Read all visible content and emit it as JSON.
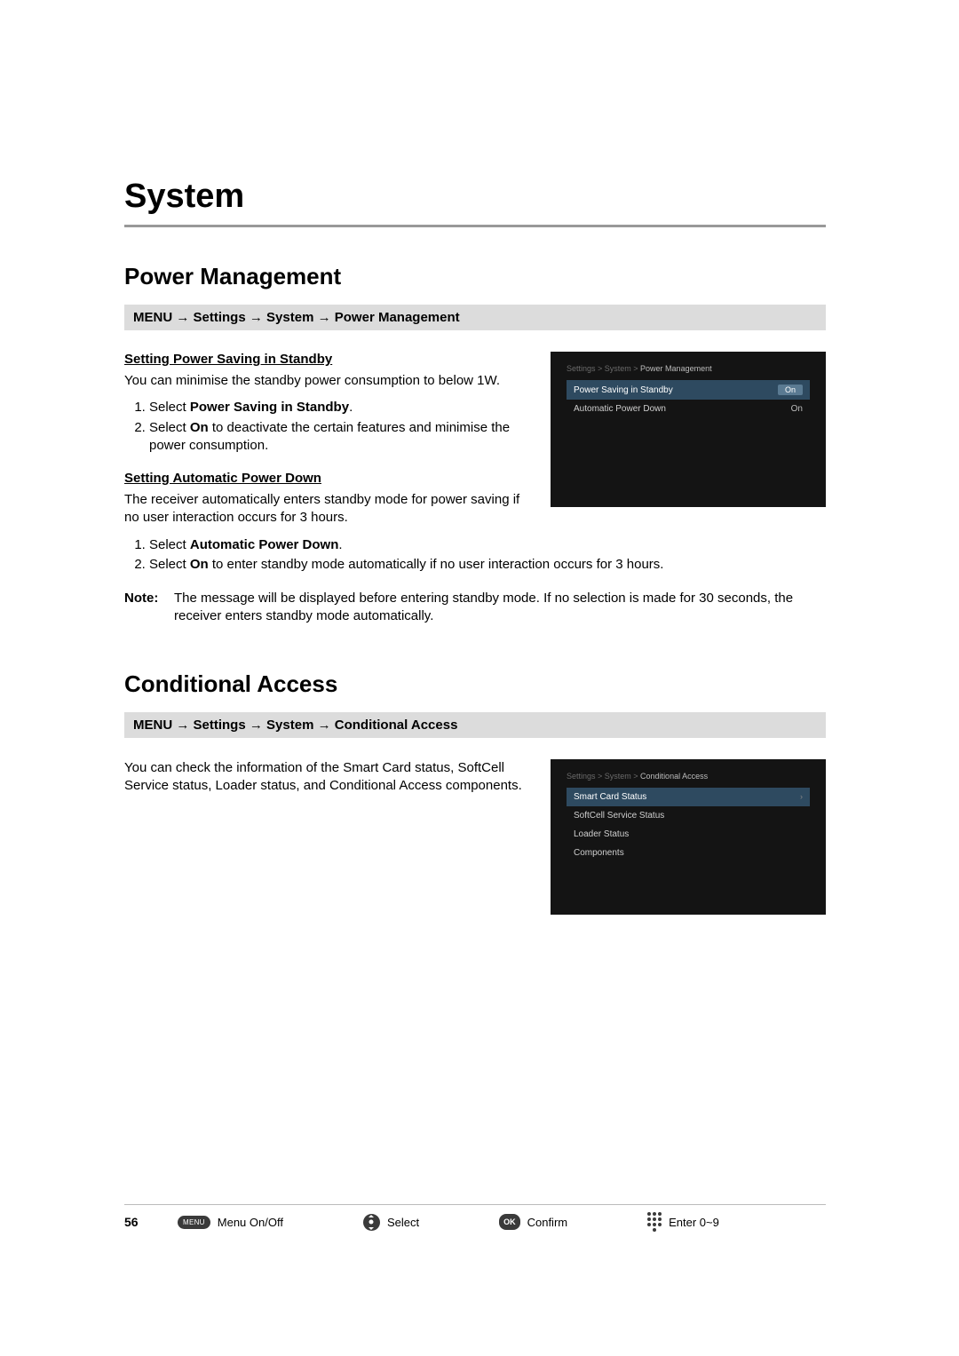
{
  "page": {
    "chapter_title": "System",
    "page_number": "56"
  },
  "power_mgmt": {
    "title": "Power Management",
    "path_prefix": "MENU",
    "path_parts": [
      "Settings",
      "System",
      "Power Management"
    ],
    "sub1_title": "Setting Power Saving in Standby",
    "sub1_intro": "You can minimise the standby power consumption to below 1W.",
    "sub1_step1_pre": "Select ",
    "sub1_step1_bold": "Power Saving in Standby",
    "sub1_step1_post": ".",
    "sub1_step2_pre": "Select ",
    "sub1_step2_bold": "On",
    "sub1_step2_post": " to deactivate the certain features and minimise the power consumption.",
    "sub2_title": "Setting Automatic Power Down",
    "sub2_intro": "The receiver automatically enters standby mode for power saving if no user interaction occurs for 3 hours.",
    "sub2_step1_pre": "Select ",
    "sub2_step1_bold": "Automatic Power Down",
    "sub2_step1_post": ".",
    "sub2_step2_pre": "Select ",
    "sub2_step2_bold": "On",
    "sub2_step2_post": " to enter standby mode automatically if no user interaction occurs for 3 hours.",
    "note_label": "Note:",
    "note_body": "The message will be displayed before entering standby mode. If no selection is made for 30 seconds, the receiver enters standby mode automatically.",
    "shot": {
      "crumb_pre": "Settings > System > ",
      "crumb_last": "Power Management",
      "row1_label": "Power Saving in Standby",
      "row1_value": "On",
      "row2_label": "Automatic Power Down",
      "row2_value": "On",
      "bg": "#141414",
      "sel_bg": "#2e4a60",
      "text_dim": "#6a6a6a",
      "text": "#cfcfcf"
    }
  },
  "cond_access": {
    "title": "Conditional Access",
    "path_prefix": "MENU",
    "path_parts": [
      "Settings",
      "System",
      "Conditional Access"
    ],
    "intro": "You can check the information of the Smart Card status, SoftCell Service status, Loader status, and Conditional Access components.",
    "shot": {
      "crumb_pre": "Settings > System > ",
      "crumb_last": "Conditional Access",
      "items": [
        "Smart Card Status",
        "SoftCell Service Status",
        "Loader Status",
        "Components"
      ]
    }
  },
  "footer": {
    "menu_text": "MENU",
    "menu_label": "Menu On/Off",
    "select_label": "Select",
    "ok_text": "OK",
    "ok_label": "Confirm",
    "numpad_label": "Enter 0~9"
  },
  "arrow": "→"
}
